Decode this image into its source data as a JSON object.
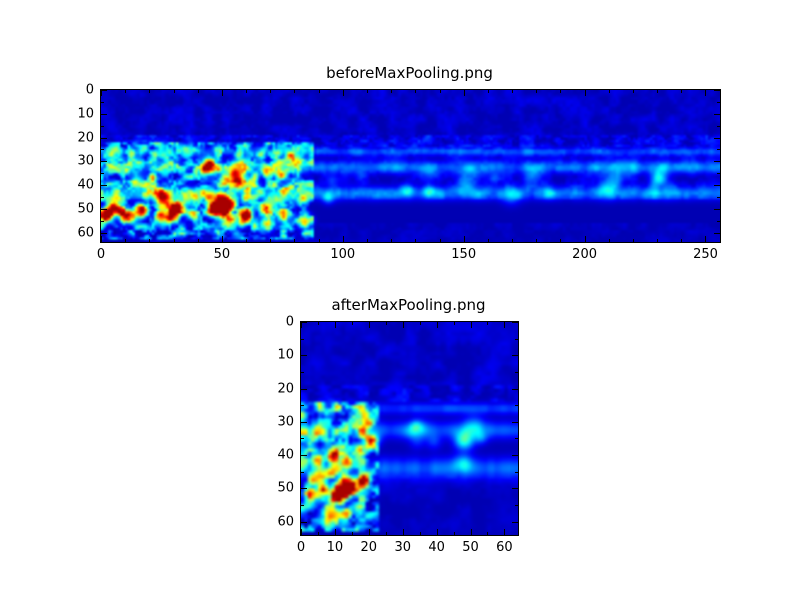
{
  "figure": {
    "background": "#ffffff",
    "frame_color": "#000000",
    "tick_color": "#000000",
    "heatmap_background": "#000090"
  },
  "chart_data": [
    {
      "type": "heatmap",
      "title": "beforeMaxPooling.png",
      "colormap": "jet",
      "x_range": [
        0,
        256
      ],
      "y_range": [
        0,
        64
      ],
      "y_inverted": true,
      "x_ticks": [
        0,
        50,
        100,
        150,
        200,
        250
      ],
      "y_ticks": [
        0,
        10,
        20,
        30,
        40,
        50,
        60
      ],
      "x_minor_step": 10,
      "y_minor_step": 5,
      "grid": [
        256,
        64
      ],
      "base": 0.05,
      "description": "Spectrogram-like feature map before max pooling. Strong bright activity (cyan, green, yellow, orange spots) occupies x 0-88 between y 24-62, brightest along a band near y 48-53. Faint speckled blue horizontal bands near y 20-25, y 32 and y 43 run across the full width to x 256. Remaining background is dark navy.",
      "regions": [
        {
          "kind": "noise",
          "x": [
            0,
            256
          ],
          "y": [
            0,
            19
          ],
          "amp": 0.07,
          "scale": 4,
          "seed": 1
        },
        {
          "kind": "noise",
          "x": [
            0,
            256
          ],
          "y": [
            19,
            24
          ],
          "amp": 0.16,
          "scale": 3,
          "seed": 2
        },
        {
          "kind": "noise",
          "x": [
            0,
            256
          ],
          "y": [
            24,
            46
          ],
          "amp": 0.1,
          "scale": 4,
          "seed": 3
        },
        {
          "kind": "hband",
          "y": 25.5,
          "sigma": 1.2,
          "amp": 0.2,
          "x": [
            0,
            256
          ],
          "scale": 5,
          "seed": 4
        },
        {
          "kind": "hband",
          "y": 32,
          "sigma": 1.8,
          "amp": 0.24,
          "x": [
            0,
            256
          ],
          "scale": 6,
          "seed": 5
        },
        {
          "kind": "hband",
          "y": 43,
          "sigma": 2.0,
          "amp": 0.26,
          "x": [
            0,
            256
          ],
          "scale": 6,
          "seed": 6
        },
        {
          "kind": "noise",
          "x": [
            0,
            88
          ],
          "y": [
            22,
            63
          ],
          "amp": 0.55,
          "scale": 3,
          "seed": 7
        },
        {
          "kind": "spots",
          "x": [
            2,
            85
          ],
          "y": [
            44,
            56
          ],
          "count": 22,
          "amp": [
            0.35,
            0.7
          ],
          "sigma": [
            1.3,
            2.4
          ],
          "seed": 8
        },
        {
          "kind": "spots",
          "x": [
            4,
            84
          ],
          "y": [
            27,
            45
          ],
          "count": 20,
          "amp": [
            0.2,
            0.5
          ],
          "sigma": [
            1.1,
            2.2
          ],
          "seed": 9
        },
        {
          "kind": "spots",
          "x": [
            88,
            250
          ],
          "y": [
            30,
            45
          ],
          "count": 18,
          "amp": [
            0.08,
            0.22
          ],
          "sigma": [
            1.5,
            3.0
          ],
          "seed": 10
        },
        {
          "kind": "noise",
          "x": [
            0,
            256
          ],
          "y": [
            56,
            64
          ],
          "amp": 0.05,
          "scale": 4,
          "seed": 11
        }
      ],
      "hotspots": [
        {
          "x": 1,
          "y": 52,
          "a": 0.75,
          "s": 1.6
        },
        {
          "x": 10,
          "y": 53,
          "a": 0.6,
          "s": 1.8
        },
        {
          "x": 17,
          "y": 50,
          "a": 0.7,
          "s": 1.6
        },
        {
          "x": 24,
          "y": 53,
          "a": 0.55,
          "s": 1.7
        },
        {
          "x": 31,
          "y": 49,
          "a": 0.75,
          "s": 1.8
        },
        {
          "x": 38,
          "y": 52,
          "a": 0.55,
          "s": 1.6
        },
        {
          "x": 46,
          "y": 50,
          "a": 0.72,
          "s": 2.0
        },
        {
          "x": 53,
          "y": 47,
          "a": 0.5,
          "s": 1.6
        },
        {
          "x": 60,
          "y": 51,
          "a": 0.65,
          "s": 1.8
        },
        {
          "x": 68,
          "y": 49,
          "a": 0.6,
          "s": 1.7
        },
        {
          "x": 75,
          "y": 52,
          "a": 0.5,
          "s": 1.6
        },
        {
          "x": 82,
          "y": 46,
          "a": 0.4,
          "s": 1.5
        }
      ]
    },
    {
      "type": "heatmap",
      "title": "afterMaxPooling.png",
      "colormap": "jet",
      "x_range": [
        0,
        64
      ],
      "y_range": [
        0,
        64
      ],
      "y_inverted": true,
      "x_ticks": [
        0,
        10,
        20,
        30,
        40,
        50,
        60
      ],
      "y_ticks": [
        0,
        10,
        20,
        30,
        40,
        50,
        60
      ],
      "x_minor_step": 5,
      "y_minor_step": 5,
      "grid": [
        64,
        64
      ],
      "base": 0.05,
      "description": "Same feature map after max pooling (x compressed 4:1). Strong bright activity occupies x 0-22 between y 26-62 with yellow/orange peaks near y 40-42 and y 48-54. Faint blue horizontal bands near y 25, y 32 and y 43 run across the full width. Background is dark navy.",
      "regions": [
        {
          "kind": "noise",
          "x": [
            0,
            64
          ],
          "y": [
            0,
            19
          ],
          "amp": 0.07,
          "scale": 4,
          "seed": 21
        },
        {
          "kind": "noise",
          "x": [
            0,
            64
          ],
          "y": [
            19,
            24
          ],
          "amp": 0.14,
          "scale": 3,
          "seed": 22
        },
        {
          "kind": "hband",
          "y": 25.5,
          "sigma": 1.2,
          "amp": 0.2,
          "x": [
            0,
            64
          ],
          "scale": 5,
          "seed": 23
        },
        {
          "kind": "hband",
          "y": 32,
          "sigma": 1.8,
          "amp": 0.26,
          "x": [
            0,
            64
          ],
          "scale": 5,
          "seed": 24
        },
        {
          "kind": "hband",
          "y": 43.5,
          "sigma": 2.2,
          "amp": 0.26,
          "x": [
            0,
            64
          ],
          "scale": 5,
          "seed": 25
        },
        {
          "kind": "noise",
          "x": [
            0,
            23
          ],
          "y": [
            24,
            63
          ],
          "amp": 0.6,
          "scale": 2.5,
          "seed": 26
        },
        {
          "kind": "spots",
          "x": [
            1,
            21
          ],
          "y": [
            44,
            58
          ],
          "count": 10,
          "amp": [
            0.35,
            0.7
          ],
          "sigma": [
            1.0,
            1.8
          ],
          "seed": 27
        },
        {
          "kind": "spots",
          "x": [
            1,
            21
          ],
          "y": [
            28,
            44
          ],
          "count": 9,
          "amp": [
            0.2,
            0.5
          ],
          "sigma": [
            0.9,
            1.6
          ],
          "seed": 28
        },
        {
          "kind": "spots",
          "x": [
            24,
            62
          ],
          "y": [
            30,
            46
          ],
          "count": 10,
          "amp": [
            0.07,
            0.2
          ],
          "sigma": [
            1.2,
            2.4
          ],
          "seed": 29
        },
        {
          "kind": "noise",
          "x": [
            23,
            64
          ],
          "y": [
            46,
            64
          ],
          "amp": 0.05,
          "scale": 4,
          "seed": 30
        }
      ],
      "hotspots": [
        {
          "x": 2,
          "y": 51,
          "a": 0.72,
          "s": 1.2
        },
        {
          "x": 6,
          "y": 50,
          "a": 0.6,
          "s": 1.2
        },
        {
          "x": 10,
          "y": 52,
          "a": 0.68,
          "s": 1.2
        },
        {
          "x": 14,
          "y": 50,
          "a": 0.58,
          "s": 1.2
        },
        {
          "x": 18,
          "y": 48,
          "a": 0.45,
          "s": 1.1
        },
        {
          "x": 4,
          "y": 41,
          "a": 0.55,
          "s": 1.1
        },
        {
          "x": 9,
          "y": 40,
          "a": 0.62,
          "s": 1.2
        },
        {
          "x": 13,
          "y": 42,
          "a": 0.48,
          "s": 1.1
        },
        {
          "x": 8,
          "y": 58,
          "a": 0.4,
          "s": 1.1
        },
        {
          "x": 13,
          "y": 57,
          "a": 0.45,
          "s": 1.1
        },
        {
          "x": 17,
          "y": 55,
          "a": 0.35,
          "s": 1.0
        }
      ]
    }
  ]
}
